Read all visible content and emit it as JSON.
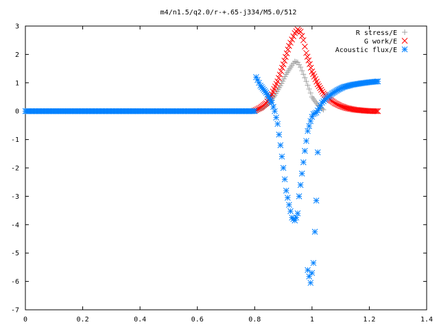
{
  "chart_data": {
    "type": "scatter",
    "title": "m4/n1.5/q2.0/r-+.65-j334/M5.0/512",
    "xlabel": "",
    "ylabel": "",
    "xlim": [
      0,
      1.4
    ],
    "ylim": [
      -7,
      3
    ],
    "grid": false,
    "legend_position": "top-right",
    "x_ticks": [
      "0",
      "0.2",
      "0.4",
      "0.6",
      "0.8",
      "1",
      "1.2",
      "1.4"
    ],
    "y_ticks": [
      "3",
      "2",
      "1",
      "0",
      "-1",
      "-2",
      "-3",
      "-4",
      "-5",
      "-6",
      "-7"
    ],
    "series": [
      {
        "name": "R stress/E",
        "marker": "plus",
        "color": "#a0a0a0",
        "x": [
          0.0,
          0.2,
          0.4,
          0.6,
          0.8,
          0.81,
          0.83,
          0.85,
          0.87,
          0.89,
          0.91,
          0.93,
          0.94,
          0.95,
          0.96,
          0.97,
          0.98,
          0.99,
          1.0,
          1.02,
          1.04
        ],
        "y": [
          0.0,
          0.0,
          0.0,
          0.0,
          0.0,
          0.03,
          0.12,
          0.3,
          0.55,
          0.9,
          1.3,
          1.62,
          1.75,
          1.72,
          1.55,
          1.3,
          1.05,
          0.78,
          0.5,
          0.22,
          0.05
        ]
      },
      {
        "name": "G work/E",
        "marker": "cross",
        "color": "#ff0000",
        "x": [
          0.8,
          0.82,
          0.84,
          0.86,
          0.88,
          0.9,
          0.92,
          0.94,
          0.95,
          0.96,
          0.97,
          0.98,
          1.0,
          1.02,
          1.04,
          1.06,
          1.08,
          1.1,
          1.12,
          1.15,
          1.18,
          1.21,
          1.23
        ],
        "y": [
          0.02,
          0.12,
          0.28,
          0.6,
          1.05,
          1.65,
          2.3,
          2.75,
          2.88,
          2.8,
          2.5,
          2.05,
          1.4,
          0.95,
          0.62,
          0.42,
          0.28,
          0.18,
          0.11,
          0.05,
          0.02,
          0.0,
          0.0
        ]
      },
      {
        "name": "Acoustic flux/E",
        "marker": "asterisk",
        "color": "#0080ff",
        "x": [
          0.0,
          0.2,
          0.4,
          0.6,
          0.8,
          0.805,
          0.82,
          0.84,
          0.86,
          0.87,
          0.88,
          0.89,
          0.9,
          0.91,
          0.92,
          0.93,
          0.94,
          0.945,
          0.95,
          0.955,
          0.965,
          0.975,
          0.985,
          0.995,
          1.0,
          1.005,
          1.015,
          1.025,
          1.035,
          1.05,
          1.07,
          1.09,
          1.11,
          1.14,
          1.17,
          1.2,
          1.23,
          0.985,
          0.995,
          1.005,
          1.015,
          1.02
        ],
        "y": [
          0.0,
          0.0,
          0.0,
          0.0,
          0.0,
          1.2,
          0.9,
          0.65,
          0.3,
          0.0,
          -0.45,
          -1.2,
          -2.0,
          -2.8,
          -3.3,
          -3.75,
          -3.85,
          -3.75,
          -3.6,
          -3.0,
          -2.2,
          -1.4,
          -0.7,
          -0.35,
          -0.2,
          -0.1,
          -0.05,
          0.1,
          0.3,
          0.45,
          0.62,
          0.75,
          0.85,
          0.93,
          0.98,
          1.02,
          1.05,
          -5.6,
          -6.05,
          -5.35,
          -3.15,
          -1.45
        ]
      }
    ]
  }
}
